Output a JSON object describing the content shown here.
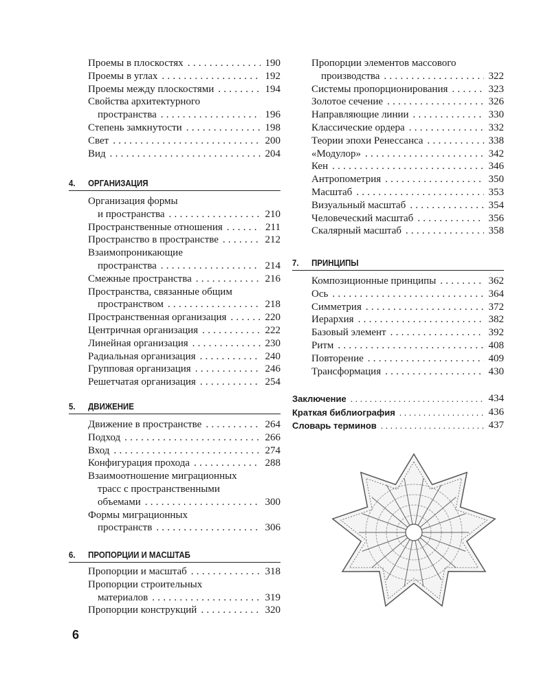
{
  "page_number": "6",
  "left_column": {
    "intro_entries": [
      {
        "lines": [
          "Проемы в плоскостях"
        ],
        "page": "190"
      },
      {
        "lines": [
          "Проемы в углах"
        ],
        "page": "192"
      },
      {
        "lines": [
          "Проемы между плоскостями"
        ],
        "page": "194"
      },
      {
        "lines": [
          "Свойства архитектурного",
          "пространства"
        ],
        "page": "196"
      },
      {
        "lines": [
          "Степень замкнутости"
        ],
        "page": "198"
      },
      {
        "lines": [
          "Свет"
        ],
        "page": "200"
      },
      {
        "lines": [
          "Вид"
        ],
        "page": "204"
      }
    ],
    "chapters": [
      {
        "number": "4.",
        "title": "ОРГАНИЗАЦИЯ",
        "entries": [
          {
            "lines": [
              "Организация формы",
              "и пространства"
            ],
            "page": "210"
          },
          {
            "lines": [
              "Пространственные отношения"
            ],
            "page": "211"
          },
          {
            "lines": [
              "Пространство в пространстве"
            ],
            "page": "212"
          },
          {
            "lines": [
              "Взаимопроникающие",
              "пространства"
            ],
            "page": "214"
          },
          {
            "lines": [
              "Смежные пространства"
            ],
            "page": "216"
          },
          {
            "lines": [
              "Пространства, связанные общим",
              "пространством"
            ],
            "page": "218"
          },
          {
            "lines": [
              "Пространственная организация"
            ],
            "page": "220"
          },
          {
            "lines": [
              "Центричная организация"
            ],
            "page": "222"
          },
          {
            "lines": [
              "Линейная организация"
            ],
            "page": "230"
          },
          {
            "lines": [
              "Радиальная организация"
            ],
            "page": "240"
          },
          {
            "lines": [
              "Групповая организация"
            ],
            "page": "246"
          },
          {
            "lines": [
              "Решетчатая организация"
            ],
            "page": "254"
          }
        ]
      },
      {
        "number": "5.",
        "title": "ДВИЖЕНИЕ",
        "entries": [
          {
            "lines": [
              "Движение в пространстве"
            ],
            "page": "264"
          },
          {
            "lines": [
              "Подход"
            ],
            "page": "266"
          },
          {
            "lines": [
              "Вход"
            ],
            "page": "274"
          },
          {
            "lines": [
              "Конфигурация прохода"
            ],
            "page": "288"
          },
          {
            "lines": [
              "Взаимоотношение миграционных",
              "трасс с пространственными",
              "объемами"
            ],
            "page": "300"
          },
          {
            "lines": [
              "Формы миграционных",
              "пространств"
            ],
            "page": "306"
          }
        ]
      },
      {
        "number": "6.",
        "title": "ПРОПОРЦИИ И МАСШТАБ",
        "entries": [
          {
            "lines": [
              "Пропорции и масштаб"
            ],
            "page": "318"
          },
          {
            "lines": [
              "Пропорции строительных",
              "материалов"
            ],
            "page": "319"
          },
          {
            "lines": [
              "Пропорции конструкций"
            ],
            "page": "320"
          }
        ]
      }
    ]
  },
  "right_column": {
    "intro_entries": [
      {
        "lines": [
          "Пропорции элементов массового",
          "производства"
        ],
        "page": "322"
      },
      {
        "lines": [
          "Системы пропорционирования"
        ],
        "page": "323"
      },
      {
        "lines": [
          "Золотое сечение"
        ],
        "page": "326"
      },
      {
        "lines": [
          "Направляющие линии"
        ],
        "page": "330"
      },
      {
        "lines": [
          "Классические ордера"
        ],
        "page": "332"
      },
      {
        "lines": [
          "Теории эпохи Ренессанса"
        ],
        "page": "338"
      },
      {
        "lines": [
          "«Модулор»"
        ],
        "page": "342"
      },
      {
        "lines": [
          "Кен"
        ],
        "page": "346"
      },
      {
        "lines": [
          "Антропометрия"
        ],
        "page": "350"
      },
      {
        "lines": [
          "Масштаб"
        ],
        "page": "353"
      },
      {
        "lines": [
          "Визуальный масштаб"
        ],
        "page": "354"
      },
      {
        "lines": [
          "Человеческий масштаб"
        ],
        "page": "356"
      },
      {
        "lines": [
          "Скалярный масштаб"
        ],
        "page": "358"
      }
    ],
    "chapters": [
      {
        "number": "7.",
        "title": "ПРИНЦИПЫ",
        "entries": [
          {
            "lines": [
              "Композиционные принципы"
            ],
            "page": "362"
          },
          {
            "lines": [
              "Ось"
            ],
            "page": "364"
          },
          {
            "lines": [
              "Симметрия"
            ],
            "page": "372"
          },
          {
            "lines": [
              "Иерархия"
            ],
            "page": "382"
          },
          {
            "lines": [
              "Базовый элемент"
            ],
            "page": "392"
          },
          {
            "lines": [
              "Ритм"
            ],
            "page": "408"
          },
          {
            "lines": [
              "Повторение"
            ],
            "page": "409"
          },
          {
            "lines": [
              "Трансформация"
            ],
            "page": "430"
          }
        ]
      }
    ],
    "back_matter": [
      {
        "label": "Заключение",
        "page": "434"
      },
      {
        "label": "Краткая библиография",
        "page": "436"
      },
      {
        "label": "Словарь терминов",
        "page": "437"
      }
    ]
  },
  "illustration": {
    "subject": "star-shaped-fortified-city-plan"
  }
}
